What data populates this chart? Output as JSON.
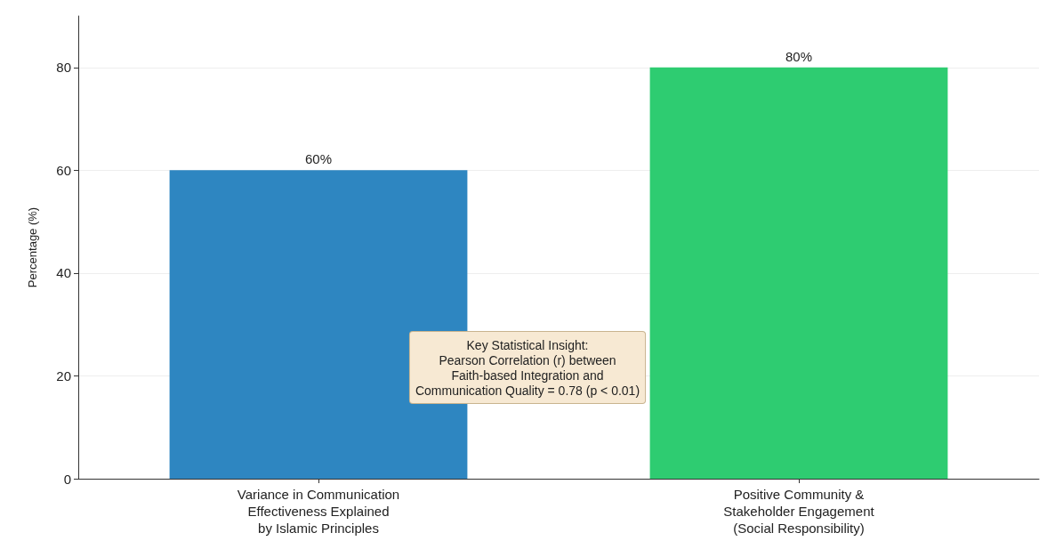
{
  "chart_data": {
    "type": "bar",
    "ylabel": "Percentage (%)",
    "categories": [
      "Variance in Communication\nEffectiveness Explained\nby Islamic Principles",
      "Positive Community &\nStakeholder Engagement\n(Social Responsibility)"
    ],
    "values": [
      60,
      80
    ],
    "colors": [
      "#2e86c1",
      "#2ecc71"
    ],
    "value_labels": [
      "60%",
      "80%"
    ],
    "ylim": [
      0,
      90
    ],
    "yticks": [
      0,
      20,
      40,
      60,
      80
    ],
    "grid": "y",
    "annotations": [
      "Key Statistical Insight:\nPearson Correlation (r) between\nFaith-based Integration and\nCommunication Quality = 0.78 (p < 0.01)"
    ]
  }
}
